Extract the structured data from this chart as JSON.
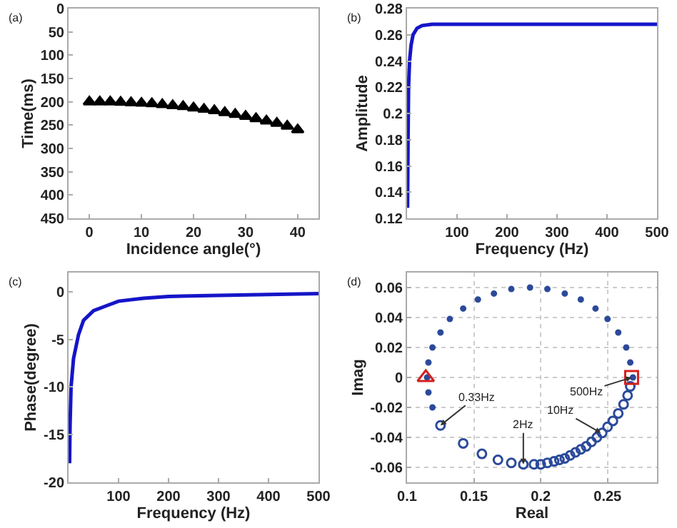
{
  "chart_data": [
    {
      "type": "scatter",
      "annotations": [
        "(a)"
      ],
      "xlabel": "Incidence angle(°)",
      "ylabel": "Time(ms)",
      "xlim": [
        -4,
        44
      ],
      "ylim": [
        450,
        0
      ],
      "xticks": [
        0,
        10,
        20,
        30,
        40
      ],
      "yticks": [
        0,
        50,
        100,
        150,
        200,
        250,
        300,
        350,
        400,
        450
      ],
      "marker": "triangle",
      "series": [
        {
          "color": "#000000",
          "x": [
            0,
            2,
            4,
            6,
            8,
            10,
            12,
            14,
            16,
            18,
            20,
            22,
            24,
            26,
            28,
            30,
            32,
            34,
            36,
            38,
            40
          ],
          "values": [
            200,
            200,
            200,
            201,
            202,
            203,
            204,
            206,
            208,
            210,
            213,
            216,
            219,
            223,
            227,
            231,
            236,
            241,
            246,
            252,
            260
          ]
        }
      ]
    },
    {
      "type": "line",
      "annotations": [
        "(b)"
      ],
      "xlabel": "Frequency (Hz)",
      "ylabel": "Amplitude",
      "xlim": [
        0,
        500
      ],
      "ylim": [
        0.12,
        0.28
      ],
      "xticks": [
        100,
        200,
        300,
        400,
        500
      ],
      "yticks": [
        0.12,
        0.14,
        0.16,
        0.18,
        0.2,
        0.22,
        0.24,
        0.26,
        0.28
      ],
      "series": [
        {
          "color": "#1515c8",
          "x": [
            1,
            2,
            3,
            5,
            8,
            12,
            20,
            30,
            50,
            100,
            200,
            300,
            400,
            500
          ],
          "values": [
            0.128,
            0.18,
            0.22,
            0.24,
            0.252,
            0.26,
            0.265,
            0.267,
            0.268,
            0.268,
            0.268,
            0.268,
            0.268,
            0.268
          ]
        }
      ]
    },
    {
      "type": "line",
      "annotations": [
        "(c)"
      ],
      "xlabel": "Frequency (Hz)",
      "ylabel": "Phase(degree)",
      "xlim": [
        0,
        500
      ],
      "ylim": [
        -20,
        2
      ],
      "xticks": [
        100,
        200,
        300,
        400,
        500
      ],
      "yticks": [
        -20,
        -15,
        -10,
        -5,
        0
      ],
      "series": [
        {
          "color": "#1515c8",
          "x": [
            2,
            3,
            5,
            10,
            20,
            30,
            50,
            75,
            100,
            150,
            200,
            300,
            400,
            500
          ],
          "values": [
            -18,
            -14,
            -10,
            -7,
            -4.5,
            -3,
            -2,
            -1.5,
            -1,
            -0.7,
            -0.5,
            -0.4,
            -0.3,
            -0.2
          ]
        }
      ]
    },
    {
      "type": "scatter",
      "annotations": [
        "(d)",
        {
          "text": "0.33Hz",
          "x": 0.125,
          "y": -0.032
        },
        {
          "text": "2Hz",
          "x": 0.187,
          "y": -0.058
        },
        {
          "text": "10Hz",
          "x": 0.245,
          "y": -0.037
        },
        {
          "text": "500Hz",
          "x": 0.268,
          "y": 0
        }
      ],
      "xlabel": "Real",
      "ylabel": "Imag",
      "xlim": [
        0.1,
        0.287
      ],
      "ylim": [
        -0.07,
        0.07
      ],
      "xticks": [
        0.1,
        0.15,
        0.2,
        0.25
      ],
      "yticks": [
        -0.06,
        -0.04,
        -0.02,
        0,
        0.02,
        0.04,
        0.06
      ],
      "grid": true,
      "series": [
        {
          "marker": "dot",
          "color": "#2b4a9a",
          "x": [
            0.269,
            0.267,
            0.264,
            0.258,
            0.25,
            0.241,
            0.23,
            0.218,
            0.205,
            0.192,
            0.178,
            0.165,
            0.153,
            0.142,
            0.132,
            0.125,
            0.119,
            0.116,
            0.115,
            0.116,
            0.119
          ],
          "values": [
            0,
            0.01,
            0.02,
            0.03,
            0.039,
            0.046,
            0.052,
            0.056,
            0.059,
            0.06,
            0.059,
            0.056,
            0.052,
            0.046,
            0.039,
            0.03,
            0.02,
            0.01,
            0,
            -0.01,
            -0.02
          ]
        },
        {
          "marker": "circle",
          "color": "#2b4a9a",
          "x": [
            0.125,
            0.142,
            0.156,
            0.168,
            0.178,
            0.187,
            0.195,
            0.2,
            0.205,
            0.21,
            0.214,
            0.218,
            0.222,
            0.226,
            0.23,
            0.234,
            0.238,
            0.242,
            0.246,
            0.25,
            0.254,
            0.258,
            0.262,
            0.265,
            0.267
          ],
          "values": [
            -0.032,
            -0.044,
            -0.051,
            -0.055,
            -0.057,
            -0.058,
            -0.058,
            -0.058,
            -0.057,
            -0.056,
            -0.055,
            -0.054,
            -0.052,
            -0.05,
            -0.048,
            -0.046,
            -0.043,
            -0.04,
            -0.037,
            -0.033,
            -0.029,
            -0.024,
            -0.018,
            -0.012,
            -0.006
          ]
        },
        {
          "marker": "triangle",
          "color": "#d42020",
          "x": [
            0.114
          ],
          "values": [
            0
          ]
        },
        {
          "marker": "square",
          "color": "#d42020",
          "x": [
            0.268
          ],
          "values": [
            0
          ]
        }
      ]
    }
  ]
}
